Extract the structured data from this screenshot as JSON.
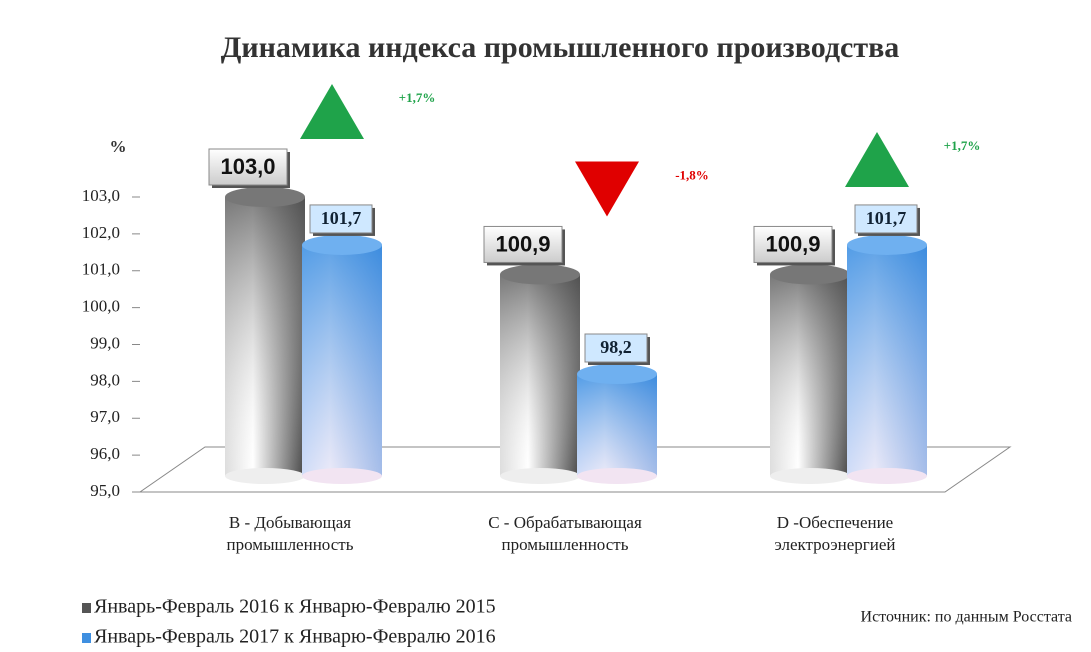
{
  "chart_data": {
    "type": "bar",
    "title": "Динамика индекса промышленного производства",
    "y_label": "%",
    "categories": [
      "B - Добывающая промышленность",
      "C - Обрабатывающая промышленность",
      "D -Обеспечение электроэнергией"
    ],
    "series": [
      {
        "name": "Январь-Февраль 2016 к Январю-Февралю 2015",
        "color": "#555555",
        "values": [
          103.0,
          100.9,
          100.9
        ],
        "value_labels": [
          "103,0",
          "100,9",
          "100,9"
        ]
      },
      {
        "name": "Январь-Февраль 2017 к Январю-Февралю 2016",
        "color": "#3f8fe0",
        "values": [
          101.7,
          98.2,
          101.7
        ],
        "value_labels": [
          "101,7",
          "98,2",
          "101,7"
        ]
      }
    ],
    "ylim": [
      95,
      103
    ],
    "yticks": [
      {
        "value": 95,
        "label": "95,0"
      },
      {
        "value": 96,
        "label": "96,0"
      },
      {
        "value": 97,
        "label": "97,0"
      },
      {
        "value": 98,
        "label": "98,0"
      },
      {
        "value": 99,
        "label": "99,0"
      },
      {
        "value": 100,
        "label": "100,0"
      },
      {
        "value": 101,
        "label": "101,0"
      },
      {
        "value": 102,
        "label": "102,0"
      },
      {
        "value": 103,
        "label": "103,0"
      }
    ],
    "annotations": [
      {
        "text": "+1,7%",
        "direction": "up",
        "color": "#1fa34a"
      },
      {
        "text": "-1,8%",
        "direction": "down",
        "color": "#e00000"
      },
      {
        "text": "+1,7%",
        "direction": "up",
        "color": "#1fa34a"
      }
    ],
    "source": "Источник: по данным Росстата"
  }
}
